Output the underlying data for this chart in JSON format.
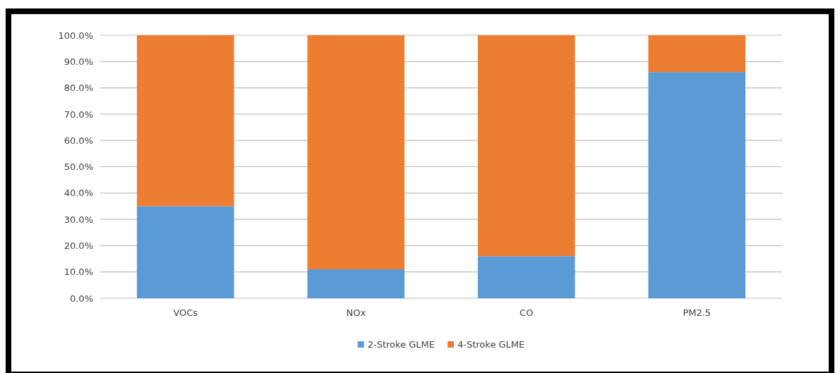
{
  "chart_data": {
    "type": "bar",
    "stacked": true,
    "categories": [
      "VOCs",
      "NOx",
      "CO",
      "PM2.5"
    ],
    "series": [
      {
        "name": "2-Stroke GLME",
        "color": "#5b9bd5",
        "values": [
          35,
          11,
          16,
          86
        ]
      },
      {
        "name": "4-Stroke GLME",
        "color": "#ed7d31",
        "values": [
          65,
          89,
          84,
          14
        ]
      }
    ],
    "ylim": [
      0,
      100
    ],
    "yticks": [
      {
        "value": 0,
        "label": "0.0%"
      },
      {
        "value": 10,
        "label": "10.0%"
      },
      {
        "value": 20,
        "label": "20.0%"
      },
      {
        "value": 30,
        "label": "30.0%"
      },
      {
        "value": 40,
        "label": "40.0%"
      },
      {
        "value": 50,
        "label": "50.0%"
      },
      {
        "value": 60,
        "label": "60.0%"
      },
      {
        "value": 70,
        "label": "70.0%"
      },
      {
        "value": 80,
        "label": "80.0%"
      },
      {
        "value": 90,
        "label": "90.0%"
      },
      {
        "value": 100,
        "label": "100.0%"
      }
    ],
    "grid": "y",
    "legend": "bottom"
  }
}
